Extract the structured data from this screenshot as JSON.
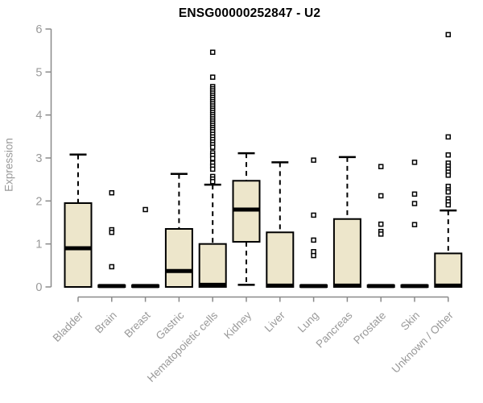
{
  "header": {
    "title": "ENSG00000252847 - U2"
  },
  "chart_data": {
    "type": "boxplot",
    "title": "ENSG00000252847 - U2",
    "ylabel": "Expression",
    "xlabel": "",
    "ylim": [
      0,
      6
    ],
    "yticks": [
      0,
      1,
      2,
      3,
      4,
      5,
      6
    ],
    "grid": false,
    "legend": "none",
    "colors": {
      "box_fill": "#EDE6CB",
      "box_stroke": "#000000",
      "median": "#000000",
      "whisker": "#000000",
      "outlier_stroke": "#000000",
      "outlier_fill": "#ffffff",
      "axis_line": "#8a8a8a",
      "tick_label": "#999999"
    },
    "categories": [
      "Bladder",
      "Brain",
      "Breast",
      "Gastric",
      "Hematopoietic cells",
      "Kidney",
      "Liver",
      "Lung",
      "Pancreas",
      "Prostate",
      "Skin",
      "Unknown / Other"
    ],
    "series": [
      {
        "name": "Bladder",
        "whisker_low": 0,
        "q1": 0,
        "median": 0.9,
        "q3": 1.95,
        "whisker_high": 3.08,
        "outliers": []
      },
      {
        "name": "Brain",
        "whisker_low": 0,
        "q1": 0,
        "median": 0.02,
        "q3": 0.04,
        "whisker_high": 0.04,
        "outliers": [
          2.19,
          1.33,
          1.27,
          0.47
        ]
      },
      {
        "name": "Breast",
        "whisker_low": 0,
        "q1": 0,
        "median": 0.02,
        "q3": 0.04,
        "whisker_high": 0.04,
        "outliers": [
          1.8
        ]
      },
      {
        "name": "Gastric",
        "whisker_low": 0,
        "q1": 0,
        "median": 0.37,
        "q3": 1.35,
        "whisker_high": 2.63,
        "outliers": []
      },
      {
        "name": "Hematopoietic cells",
        "whisker_low": 0,
        "q1": 0,
        "median": 0.05,
        "q3": 1.0,
        "whisker_high": 2.38,
        "outliers": [
          5.46,
          4.88,
          4.66,
          4.61,
          4.56,
          4.51,
          4.46,
          4.41,
          4.36,
          4.31,
          4.26,
          4.21,
          4.16,
          4.11,
          4.06,
          4.01,
          3.96,
          3.91,
          3.86,
          3.81,
          3.76,
          3.71,
          3.66,
          3.61,
          3.55,
          3.49,
          3.43,
          3.37,
          3.31,
          3.25,
          3.12,
          3.06,
          2.99,
          2.88,
          2.81,
          2.74,
          2.57,
          2.51,
          2.45
        ]
      },
      {
        "name": "Kidney",
        "whisker_low": 0.05,
        "q1": 1.05,
        "median": 1.8,
        "q3": 2.47,
        "whisker_high": 3.11,
        "outliers": []
      },
      {
        "name": "Liver",
        "whisker_low": 0,
        "q1": 0,
        "median": 0.03,
        "q3": 1.27,
        "whisker_high": 2.9,
        "outliers": []
      },
      {
        "name": "Lung",
        "whisker_low": 0,
        "q1": 0,
        "median": 0.02,
        "q3": 0.04,
        "whisker_high": 0.04,
        "outliers": [
          2.95,
          1.67,
          1.09,
          0.82,
          0.73
        ]
      },
      {
        "name": "Pancreas",
        "whisker_low": 0,
        "q1": 0,
        "median": 0.03,
        "q3": 1.58,
        "whisker_high": 3.02,
        "outliers": []
      },
      {
        "name": "Prostate",
        "whisker_low": 0,
        "q1": 0,
        "median": 0.02,
        "q3": 0.04,
        "whisker_high": 0.04,
        "outliers": [
          2.8,
          2.12,
          1.46,
          1.29,
          1.23
        ]
      },
      {
        "name": "Skin",
        "whisker_low": 0,
        "q1": 0,
        "median": 0.02,
        "q3": 0.04,
        "whisker_high": 0.04,
        "outliers": [
          2.9,
          2.16,
          1.94,
          1.45
        ]
      },
      {
        "name": "Unknown / Other",
        "whisker_low": 0,
        "q1": 0,
        "median": 0.03,
        "q3": 0.78,
        "whisker_high": 1.78,
        "outliers": [
          5.87,
          3.49,
          3.07,
          2.88,
          2.81,
          2.74,
          2.67,
          2.6,
          2.34,
          2.26,
          2.21,
          2.05,
          1.98,
          1.91
        ]
      }
    ]
  }
}
